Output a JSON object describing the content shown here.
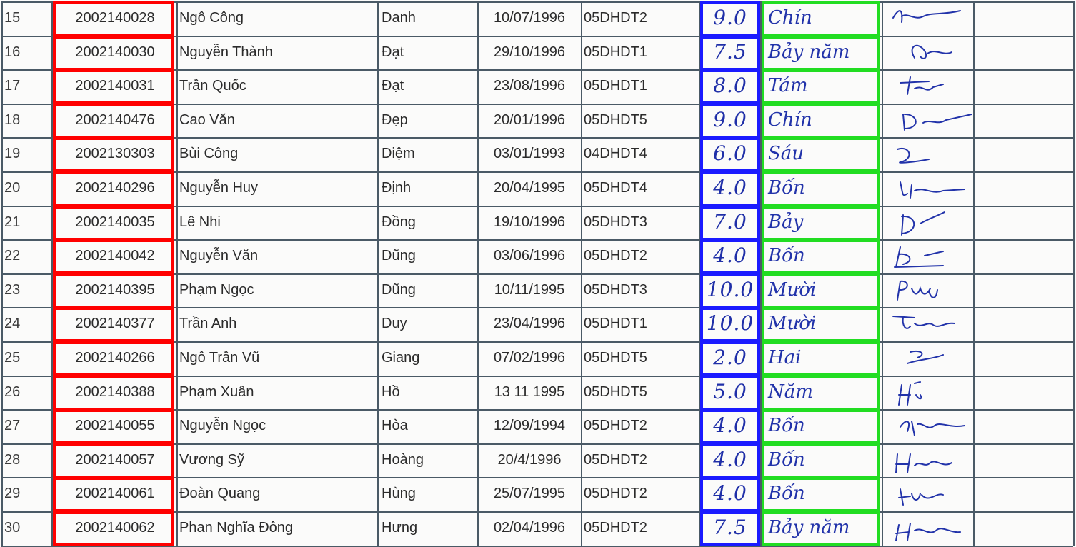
{
  "rows": [
    {
      "stt": "15",
      "mssv": "2002140028",
      "ho": "Ngô Công",
      "ten": "Danh",
      "dob": "10/07/1996",
      "lop": "05DHDT2",
      "score": "9.0",
      "words": "Chín"
    },
    {
      "stt": "16",
      "mssv": "2002140030",
      "ho": "Nguyễn Thành",
      "ten": "Đạt",
      "dob": "29/10/1996",
      "lop": "05DHDT1",
      "score": "7.5",
      "words": "Bảy năm"
    },
    {
      "stt": "17",
      "mssv": "2002140031",
      "ho": "Trần Quốc",
      "ten": "Đạt",
      "dob": "23/08/1996",
      "lop": "05DHDT1",
      "score": "8.0",
      "words": "Tám"
    },
    {
      "stt": "18",
      "mssv": "2002140476",
      "ho": "Cao Văn",
      "ten": "Đẹp",
      "dob": "20/01/1996",
      "lop": "05DHDT5",
      "score": "9.0",
      "words": "Chín"
    },
    {
      "stt": "19",
      "mssv": "2002130303",
      "ho": "Bùi Công",
      "ten": "Diệm",
      "dob": "03/01/1993",
      "lop": "04DHDT4",
      "score": "6.0",
      "words": "Sáu"
    },
    {
      "stt": "20",
      "mssv": "2002140296",
      "ho": "Nguyễn Huy",
      "ten": "Định",
      "dob": "20/04/1995",
      "lop": "05DHDT4",
      "score": "4.0",
      "words": "Bốn"
    },
    {
      "stt": "21",
      "mssv": "2002140035",
      "ho": "Lê Nhi",
      "ten": "Đồng",
      "dob": "19/10/1996",
      "lop": "05DHDT3",
      "score": "7.0",
      "words": "Bảy"
    },
    {
      "stt": "22",
      "mssv": "2002140042",
      "ho": "Nguyễn Văn",
      "ten": "Dũng",
      "dob": "03/06/1996",
      "lop": "05DHDT2",
      "score": "4.0",
      "words": "Bốn"
    },
    {
      "stt": "23",
      "mssv": "2002140395",
      "ho": "Phạm Ngọc",
      "ten": "Dũng",
      "dob": "10/11/1995",
      "lop": "05DHDT3",
      "score": "10.0",
      "words": "Mười"
    },
    {
      "stt": "24",
      "mssv": "2002140377",
      "ho": "Trần Anh",
      "ten": "Duy",
      "dob": "23/04/1996",
      "lop": "05DHDT1",
      "score": "10.0",
      "words": "Mười"
    },
    {
      "stt": "25",
      "mssv": "2002140266",
      "ho": "Ngô Trần Vũ",
      "ten": "Giang",
      "dob": "07/02/1996",
      "lop": "05DHDT5",
      "score": "2.0",
      "words": "Hai"
    },
    {
      "stt": "26",
      "mssv": "2002140388",
      "ho": "Phạm Xuân",
      "ten": "Hồ",
      "dob": "13 11 1995",
      "lop": "05DHDT5",
      "score": "5.0",
      "words": "Năm"
    },
    {
      "stt": "27",
      "mssv": "2002140055",
      "ho": "Nguyễn Ngọc",
      "ten": "Hòa",
      "dob": "12/09/1994",
      "lop": "05DHDT2",
      "score": "4.0",
      "words": "Bốn"
    },
    {
      "stt": "28",
      "mssv": "2002140057",
      "ho": "Vương Sỹ",
      "ten": "Hoàng",
      "dob": "20/4/1996",
      "lop": "05DHDT2",
      "score": "4.0",
      "words": "Bốn"
    },
    {
      "stt": "29",
      "mssv": "2002140061",
      "ho": "Đoàn Quang",
      "ten": "Hùng",
      "dob": "25/07/1995",
      "lop": "05DHDT2",
      "score": "4.0",
      "words": "Bốn"
    },
    {
      "stt": "30",
      "mssv": "2002140062",
      "ho": "Phan Nghĩa Đông",
      "ten": "Hưng",
      "dob": "02/04/1996",
      "lop": "05DHDT2",
      "score": "7.5",
      "words": "Bảy năm"
    }
  ],
  "colors": {
    "mssv_box": "#ff0000",
    "score_box": "#1a1aff",
    "words_box": "#22dd22",
    "ink": "#2233aa"
  },
  "signature_icon": "handwritten-signature-icon"
}
